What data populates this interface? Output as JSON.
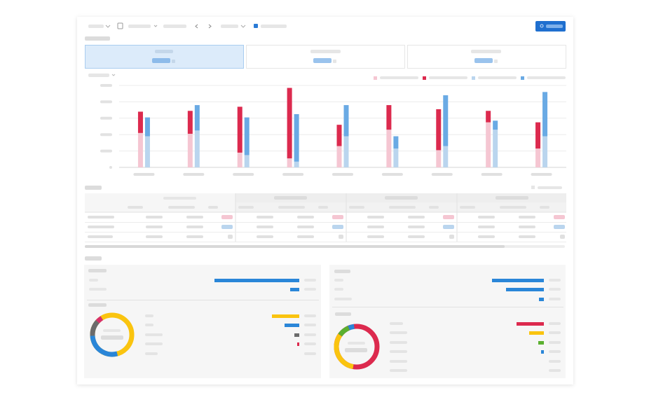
{
  "chart_data": {
    "type": "bar",
    "stacked": true,
    "categories": [
      null,
      null,
      null,
      null,
      null,
      null,
      null,
      null,
      null
    ],
    "ylim": [
      0,
      5
    ],
    "yticks": [
      0,
      1,
      2,
      3,
      4,
      5
    ],
    "grid": true,
    "series": [
      {
        "color": "#f5c6d2",
        "stack": "a",
        "values": [
          2.1,
          2.05,
          0.9,
          0.55,
          1.3,
          2.3,
          1.05,
          2.75,
          1.15
        ]
      },
      {
        "color": "#dc2a4e",
        "stack": "a",
        "values": [
          1.3,
          1.4,
          2.8,
          4.3,
          1.3,
          1.5,
          2.5,
          0.7,
          1.6
        ]
      },
      {
        "color": "#bad5ee",
        "stack": "b",
        "values": [
          1.9,
          2.25,
          0.75,
          0.35,
          1.9,
          1.15,
          1.3,
          2.3,
          1.9
        ]
      },
      {
        "color": "#6aaae4",
        "stack": "b",
        "values": [
          1.15,
          1.55,
          2.3,
          2.9,
          1.9,
          0.75,
          3.1,
          0.55,
          2.7
        ]
      }
    ]
  }
}
